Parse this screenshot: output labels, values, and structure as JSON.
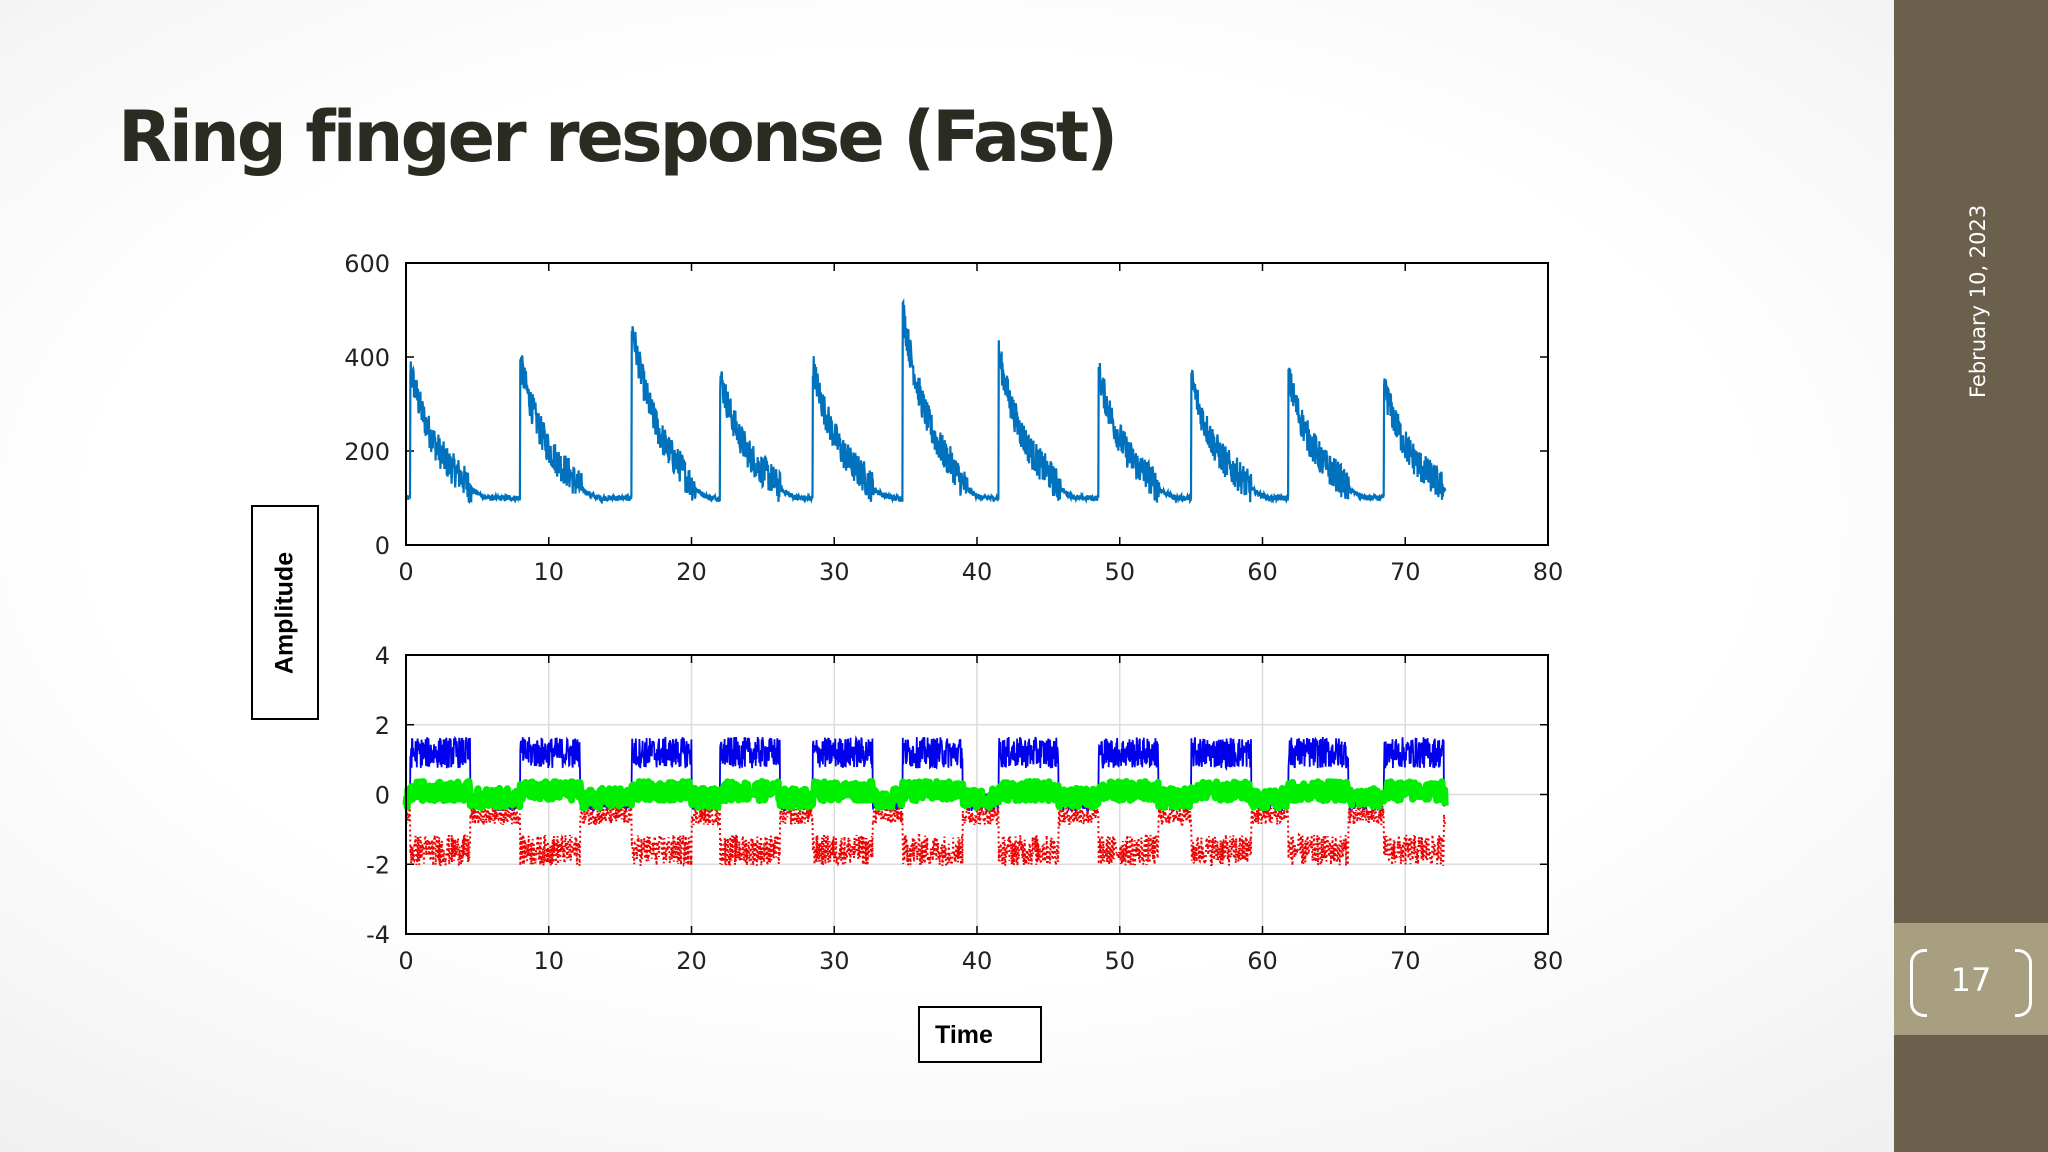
{
  "slide": {
    "title": "Ring finger response (Fast)",
    "date": "February 10, 2023",
    "page_number": "17"
  },
  "colors": {
    "side_panel": "#6b604b",
    "page_box": "#a89e80",
    "title": "#2b2b22"
  },
  "chart_data": [
    {
      "type": "line",
      "xlim": [
        0,
        80
      ],
      "ylim": [
        0,
        600
      ],
      "xticks": [
        "0",
        "10",
        "20",
        "30",
        "40",
        "50",
        "60",
        "70",
        "80"
      ],
      "yticks": [
        "0",
        "200",
        "400",
        "600"
      ],
      "grid": false,
      "x_end": 72.8,
      "series": [
        {
          "color": "#0072bd",
          "baseline": 100,
          "peaks": [
            {
              "x": 0.3,
              "y": 375
            },
            {
              "x": 8.0,
              "y": 390
            },
            {
              "x": 15.8,
              "y": 470
            },
            {
              "x": 22.0,
              "y": 360
            },
            {
              "x": 28.5,
              "y": 380
            },
            {
              "x": 34.8,
              "y": 500
            },
            {
              "x": 41.5,
              "y": 410
            },
            {
              "x": 48.5,
              "y": 370
            },
            {
              "x": 55.0,
              "y": 355
            },
            {
              "x": 61.8,
              "y": 360
            },
            {
              "x": 68.5,
              "y": 340
            }
          ]
        }
      ]
    },
    {
      "type": "line",
      "xlim": [
        0,
        80
      ],
      "ylim": [
        -4,
        4
      ],
      "xticks": [
        "0",
        "10",
        "20",
        "30",
        "40",
        "50",
        "60",
        "70",
        "80"
      ],
      "yticks": [
        "-4",
        "-2",
        "0",
        "2",
        "4"
      ],
      "grid": true,
      "x_end": 72.8,
      "ylabel": "Amplitude",
      "xlabel": "Time",
      "series": [
        {
          "color": "#0000ee",
          "style": "solid",
          "active": 1.2,
          "rest": -0.2
        },
        {
          "color": "#ee0000",
          "style": "dotted",
          "active": -1.6,
          "rest": -0.6
        },
        {
          "color": "#00ee00",
          "style": "thick",
          "active": 0.1,
          "rest": -0.1
        }
      ]
    }
  ]
}
